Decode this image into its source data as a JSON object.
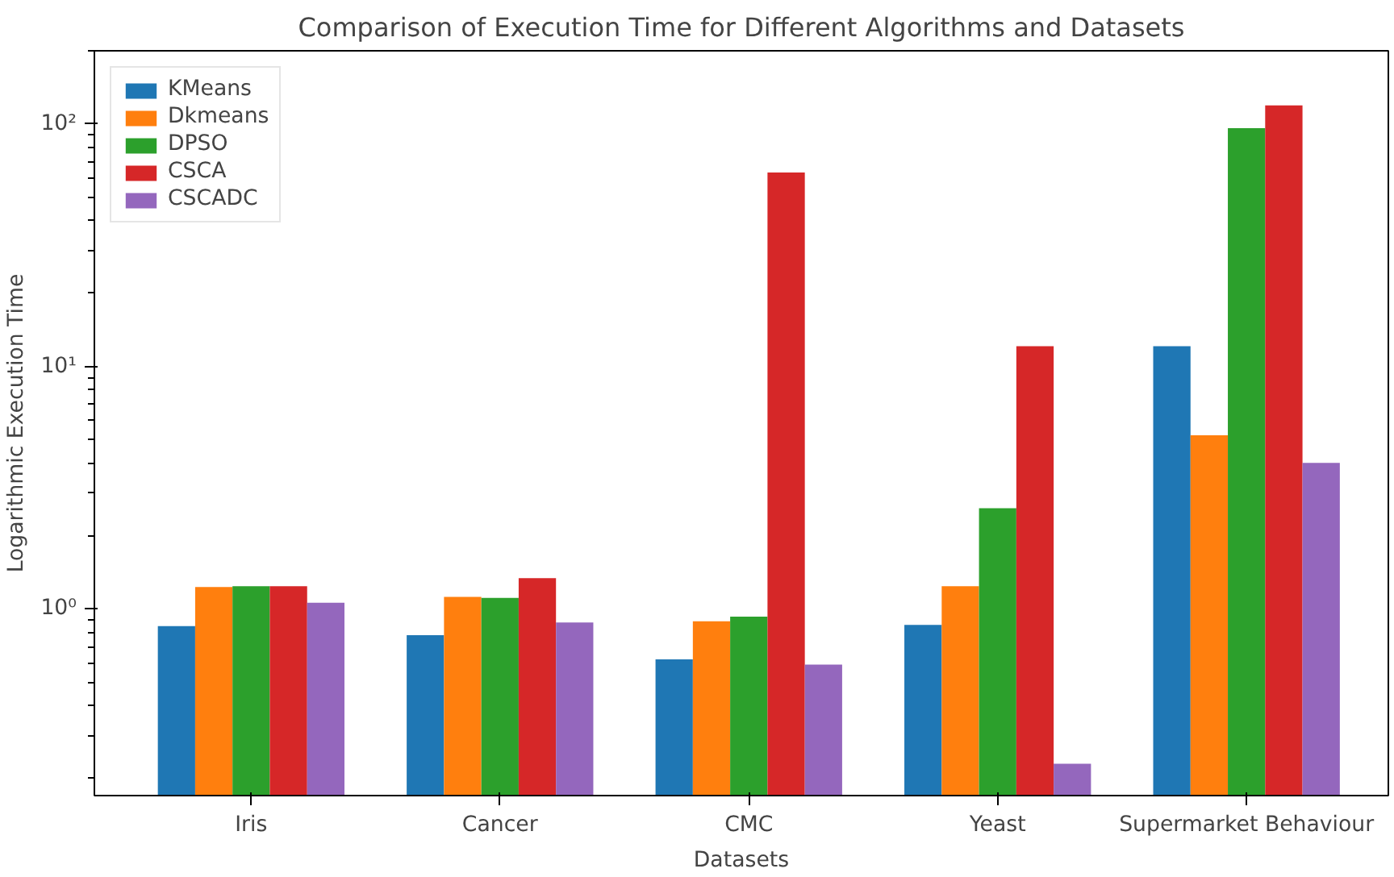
{
  "chart_data": {
    "type": "bar",
    "title": "Comparison of Execution Time for Different Algorithms and Datasets",
    "xlabel": "Datasets",
    "ylabel": "Logarithmic Execution Time",
    "categories": [
      "Iris",
      "Cancer",
      "CMC",
      "Yeast",
      "Supermarket Behaviour"
    ],
    "series": [
      {
        "name": "KMeans",
        "color": "#1f77b4",
        "values": [
          0.85,
          0.78,
          0.62,
          0.86,
          12.1
        ]
      },
      {
        "name": "Dkmeans",
        "color": "#ff7f0e",
        "values": [
          1.23,
          1.12,
          0.89,
          1.24,
          5.2
        ]
      },
      {
        "name": "DPSO",
        "color": "#2ca02c",
        "values": [
          1.24,
          1.11,
          0.93,
          2.6,
          96
        ]
      },
      {
        "name": "CSCA",
        "color": "#d62728",
        "values": [
          1.24,
          1.34,
          63,
          12.1,
          119
        ]
      },
      {
        "name": "CSCADC",
        "color": "#9467bd",
        "values": [
          1.06,
          0.88,
          0.59,
          0.23,
          4.0
        ]
      }
    ],
    "log": "y",
    "ylim": [
      0.17,
      200
    ],
    "yticks": [
      {
        "value": 1,
        "label": "10⁰"
      },
      {
        "value": 10,
        "label": "10¹"
      },
      {
        "value": 100,
        "label": "10²"
      }
    ],
    "grid": false,
    "legend": "top left"
  }
}
